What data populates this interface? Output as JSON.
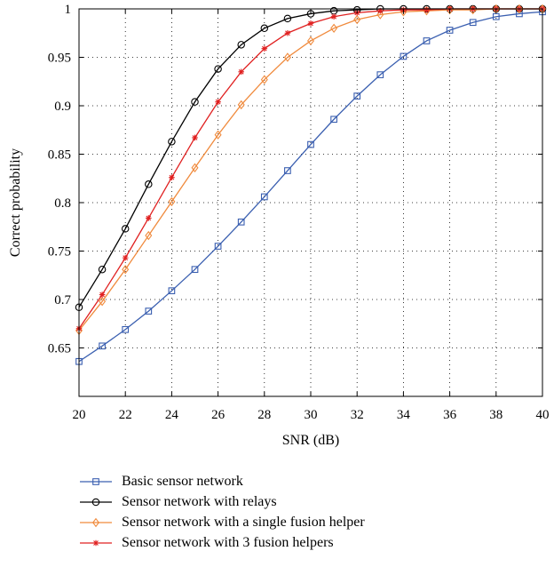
{
  "chart_data": {
    "type": "line",
    "xlabel": "SNR (dB)",
    "ylabel": "Correct probability",
    "xlim": [
      20,
      40
    ],
    "ylim": [
      0.6,
      1.0
    ],
    "grid": true,
    "legend_position": "bottom",
    "x_ticks": [
      "20",
      "22",
      "24",
      "26",
      "28",
      "30",
      "32",
      "34",
      "36",
      "38",
      "40"
    ],
    "y_ticks": [
      "0.65",
      "0.7",
      "0.75",
      "0.8",
      "0.85",
      "0.9",
      "0.95",
      "1"
    ],
    "x": [
      20,
      21,
      22,
      23,
      24,
      25,
      26,
      27,
      28,
      29,
      30,
      31,
      32,
      33,
      34,
      35,
      36,
      37,
      38,
      39,
      40
    ],
    "series": [
      {
        "name": "Basic sensor network",
        "color": "#3a5fb0",
        "marker": "square",
        "values": [
          0.636,
          0.652,
          0.669,
          0.688,
          0.709,
          0.731,
          0.755,
          0.78,
          0.806,
          0.833,
          0.86,
          0.886,
          0.91,
          0.932,
          0.951,
          0.967,
          0.978,
          0.986,
          0.992,
          0.995,
          0.997
        ]
      },
      {
        "name": "Sensor network with relays",
        "color": "#000000",
        "marker": "circle",
        "values": [
          0.692,
          0.731,
          0.773,
          0.819,
          0.863,
          0.904,
          0.938,
          0.963,
          0.98,
          0.99,
          0.995,
          0.998,
          0.999,
          1.0,
          1.0,
          1.0,
          1.0,
          1.0,
          1.0,
          1.0,
          1.0
        ]
      },
      {
        "name": "Sensor network with a single fusion helper",
        "color": "#f08a3c",
        "marker": "diamond",
        "values": [
          0.668,
          0.698,
          0.731,
          0.766,
          0.801,
          0.836,
          0.87,
          0.901,
          0.927,
          0.95,
          0.967,
          0.98,
          0.989,
          0.994,
          0.997,
          0.998,
          0.999,
          0.999,
          1.0,
          1.0,
          1.0
        ]
      },
      {
        "name": "Sensor network with 3 fusion helpers",
        "color": "#e02020",
        "marker": "star",
        "values": [
          0.67,
          0.705,
          0.743,
          0.784,
          0.826,
          0.867,
          0.904,
          0.935,
          0.959,
          0.975,
          0.985,
          0.992,
          0.996,
          0.998,
          0.999,
          0.999,
          1.0,
          1.0,
          1.0,
          1.0,
          1.0
        ]
      }
    ]
  }
}
